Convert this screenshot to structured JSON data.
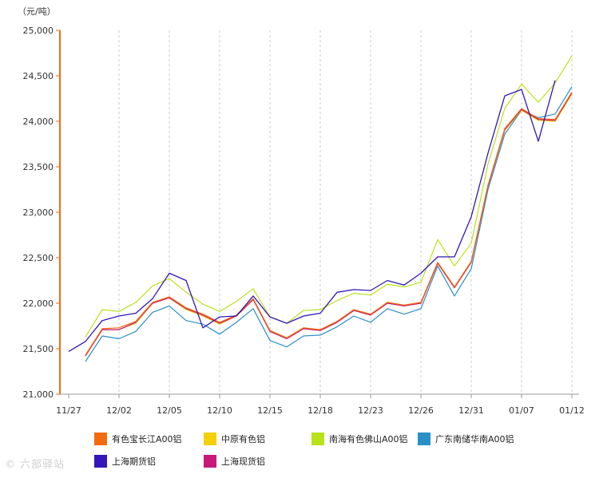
{
  "unit_label": "（元/吨）",
  "watermark": "© 六部驿站",
  "chart_data": {
    "type": "line",
    "ylim": [
      21000,
      25000
    ],
    "yticks": [
      "21,000",
      "21,500",
      "22,000",
      "22,500",
      "23,000",
      "23,500",
      "24,000",
      "24,500",
      "25,000"
    ],
    "ytick_values": [
      21000,
      21500,
      22000,
      22500,
      23000,
      23500,
      24000,
      24500,
      25000
    ],
    "xticks": [
      "11/27",
      "12/02",
      "12/05",
      "12/10",
      "12/15",
      "12/18",
      "12/23",
      "12/26",
      "12/31",
      "01/07",
      "01/12"
    ],
    "grid": "vertical-dashed",
    "legend_position": "bottom",
    "series": [
      {
        "name": "有色宝长江A00铝",
        "color": "#f26b0f",
        "values": [
          null,
          21430,
          21720,
          21730,
          21800,
          22010,
          22070,
          21950,
          21880,
          21790,
          21870,
          22050,
          21700,
          21620,
          21730,
          21710,
          21800,
          21930,
          21880,
          22010,
          21980,
          22010,
          22450,
          22180,
          22460,
          23300,
          23920,
          24140,
          24030,
          24020,
          24320
        ]
      },
      {
        "name": "中原有色铝",
        "color": "#f5d000",
        "values": [
          null,
          21420,
          21710,
          21710,
          21780,
          22000,
          22060,
          21930,
          21860,
          21770,
          21860,
          22040,
          21690,
          21610,
          21720,
          21700,
          21790,
          21920,
          21870,
          22000,
          21970,
          22000,
          22440,
          22170,
          22450,
          23290,
          23900,
          24120,
          24010,
          24000,
          24300
        ]
      },
      {
        "name": "南海有色佛山A00铝",
        "color": "#b9e219",
        "values": [
          null,
          21630,
          21930,
          21910,
          22010,
          22190,
          22270,
          22120,
          21990,
          21910,
          22020,
          22160,
          21850,
          21780,
          21920,
          21930,
          22030,
          22110,
          22090,
          22210,
          22180,
          22230,
          22700,
          22410,
          22660,
          23530,
          24140,
          24410,
          24210,
          24420,
          24720
        ]
      },
      {
        "name": "广东南储华南A00铝",
        "color": "#2a8fc6",
        "values": [
          null,
          21360,
          21640,
          21610,
          21690,
          21900,
          21970,
          21810,
          21770,
          21660,
          21790,
          21940,
          21590,
          21520,
          21640,
          21650,
          21740,
          21860,
          21790,
          21940,
          21880,
          21940,
          22410,
          22080,
          22380,
          23250,
          23860,
          24120,
          24040,
          24080,
          24380
        ]
      },
      {
        "name": "上海期货铝",
        "color": "#3317b8",
        "values": [
          21470,
          21580,
          21810,
          21860,
          21890,
          22050,
          22330,
          22250,
          21730,
          21850,
          21860,
          22080,
          21850,
          21780,
          21860,
          21890,
          22120,
          22150,
          22140,
          22250,
          22200,
          22330,
          22510,
          22510,
          22950,
          23650,
          24280,
          24350,
          23780,
          24450,
          null
        ]
      },
      {
        "name": "上海现货铝",
        "color": "#c8197b",
        "values": [
          null,
          21420,
          21710,
          21710,
          21790,
          22000,
          22060,
          21940,
          21870,
          21780,
          21860,
          22040,
          21690,
          21610,
          21720,
          21700,
          21790,
          21920,
          21870,
          22000,
          21970,
          22000,
          22440,
          22170,
          22450,
          23290,
          23910,
          24130,
          24020,
          24010,
          24310
        ]
      }
    ]
  }
}
